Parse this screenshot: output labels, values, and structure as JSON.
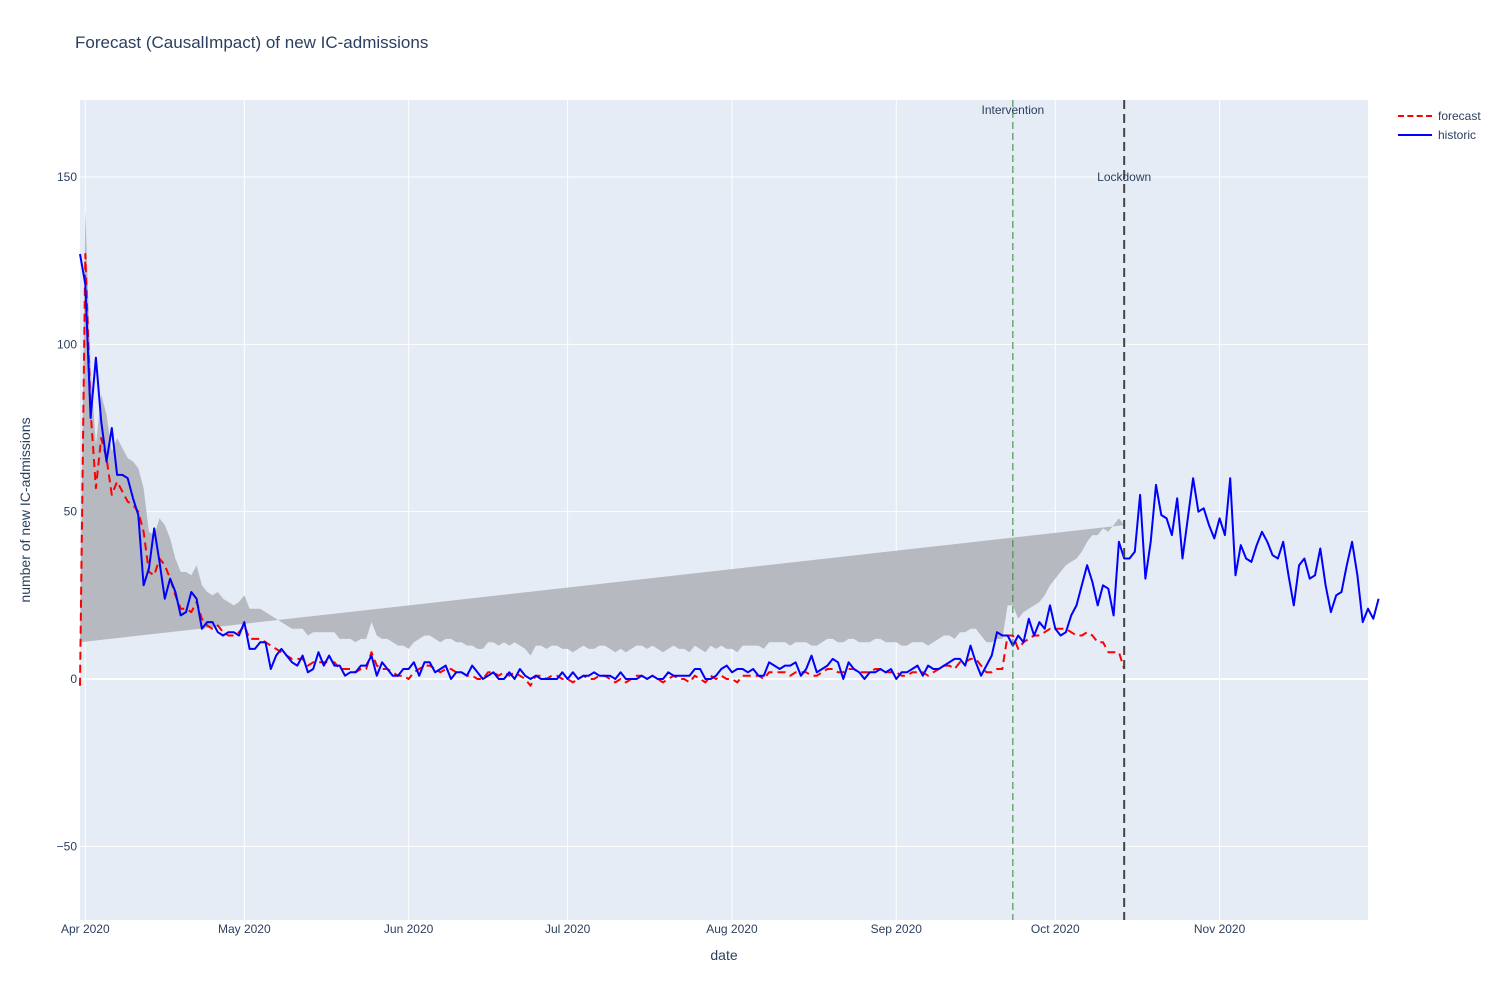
{
  "chart_data": {
    "type": "line",
    "title": "Forecast (CausalImpact) of new IC-admissions",
    "xlabel": "date",
    "ylabel": "number of new IC-admissions",
    "xlim": [
      "2020-03-31",
      "2020-11-29"
    ],
    "ylim": [
      -72,
      173
    ],
    "x_ticks": [
      {
        "date": "2020-04-01",
        "label": "Apr 2020"
      },
      {
        "date": "2020-05-01",
        "label": "May 2020"
      },
      {
        "date": "2020-06-01",
        "label": "Jun 2020"
      },
      {
        "date": "2020-07-01",
        "label": "Jul 2020"
      },
      {
        "date": "2020-08-01",
        "label": "Aug 2020"
      },
      {
        "date": "2020-09-01",
        "label": "Sep 2020"
      },
      {
        "date": "2020-10-01",
        "label": "Oct 2020"
      },
      {
        "date": "2020-11-01",
        "label": "Nov 2020"
      }
    ],
    "y_ticks": [
      -50,
      0,
      50,
      100,
      150
    ],
    "grid": true,
    "legend_position": "top-right, outside plot",
    "legend": [
      {
        "name": "forecast",
        "color": "#ff0000",
        "dash": "dash"
      },
      {
        "name": "historic",
        "color": "#0000ff",
        "dash": "solid"
      }
    ],
    "annotations": [
      {
        "label": "Intervention",
        "date": "2020-09-23",
        "color": "#2e8b2e"
      },
      {
        "label": "Lockdown",
        "date": "2020-10-14",
        "color": "#444444"
      }
    ],
    "series": [
      {
        "name": "historic",
        "color": "#0000ff",
        "x_start": "2020-03-31",
        "values": [
          127,
          118,
          78,
          96,
          77,
          65,
          75,
          61,
          61,
          60,
          54,
          49,
          28,
          33,
          45,
          35,
          24,
          30,
          26,
          19,
          20,
          26,
          24,
          15,
          17,
          17,
          14,
          13,
          14,
          14,
          13,
          17,
          9,
          9,
          11,
          11,
          3,
          7,
          9,
          7,
          5,
          4,
          7,
          2,
          3,
          8,
          4,
          7,
          4,
          4,
          1,
          2,
          2,
          4,
          4,
          7,
          1,
          5,
          3,
          1,
          1,
          3,
          3,
          5,
          1,
          5,
          5,
          2,
          3,
          4,
          0,
          2,
          2,
          1,
          4,
          2,
          0,
          1,
          2,
          0,
          0,
          2,
          0,
          3,
          1,
          0,
          1,
          0,
          0,
          0,
          0,
          2,
          0,
          2,
          0,
          1,
          1,
          2,
          1,
          1,
          1,
          0,
          2,
          0,
          0,
          0,
          1,
          0,
          1,
          0,
          0,
          2,
          1,
          1,
          1,
          1,
          3,
          3,
          0,
          0,
          1,
          3,
          4,
          2,
          3,
          3,
          2,
          3,
          1,
          1,
          5,
          4,
          3,
          4,
          4,
          5,
          1,
          3,
          7,
          2,
          3,
          4,
          6,
          5,
          0,
          5,
          3,
          2,
          0,
          2,
          2,
          3,
          2,
          3,
          0,
          2,
          2,
          3,
          4,
          1,
          4,
          3,
          3,
          4,
          5,
          6,
          6,
          4,
          10,
          5,
          1,
          4,
          7,
          14,
          13,
          13,
          10,
          13,
          11,
          18,
          13,
          17,
          15,
          22,
          15,
          13,
          14,
          19,
          22,
          28,
          34,
          29,
          22,
          28,
          27,
          19,
          41,
          36,
          36,
          38,
          55,
          30,
          41,
          58,
          49,
          48,
          43,
          54,
          36,
          48,
          60,
          50,
          51,
          46,
          42,
          48,
          43,
          60,
          31,
          40,
          36,
          35,
          40,
          44,
          41,
          37,
          36,
          41,
          31,
          22,
          34,
          36,
          30,
          31,
          39,
          28,
          20,
          25,
          26,
          34,
          41,
          31,
          17,
          21,
          18,
          24
        ]
      },
      {
        "name": "forecast",
        "color": "#ff0000",
        "x_start": "2020-03-31",
        "values": [
          -2,
          127,
          80,
          57,
          72,
          66,
          55,
          59,
          56,
          53,
          52,
          50,
          44,
          32,
          31,
          36,
          34,
          30,
          25,
          21,
          21,
          20,
          23,
          18,
          16,
          15,
          16,
          14,
          13,
          13,
          14,
          16,
          12,
          12,
          12,
          11,
          10,
          9,
          8,
          7,
          6,
          6,
          6,
          4,
          5,
          5,
          5,
          5,
          5,
          3,
          3,
          3,
          2,
          3,
          3,
          8,
          4,
          3,
          3,
          2,
          1,
          1,
          0,
          2,
          3,
          4,
          4,
          3,
          2,
          3,
          3,
          2,
          2,
          1,
          1,
          0,
          0,
          2,
          2,
          1,
          2,
          1,
          2,
          1,
          0,
          -2,
          1,
          1,
          0,
          1,
          1,
          0,
          0,
          -1,
          0,
          1,
          0,
          0,
          1,
          1,
          0,
          -1,
          0,
          -1,
          0,
          1,
          1,
          0,
          1,
          0,
          -1,
          0,
          1,
          0,
          0,
          -1,
          1,
          0,
          -1,
          1,
          0,
          1,
          0,
          0,
          -1,
          1,
          1,
          1,
          1,
          0,
          2,
          2,
          2,
          2,
          1,
          2,
          2,
          2,
          1,
          1,
          2,
          3,
          3,
          2,
          2,
          3,
          3,
          2,
          2,
          2,
          3,
          3,
          2,
          2,
          2,
          1,
          1,
          2,
          2,
          2,
          1,
          2,
          3,
          4,
          4,
          3,
          5,
          5,
          6,
          6,
          4,
          2,
          2,
          3,
          3,
          13,
          13,
          9,
          11,
          12,
          13,
          13,
          14,
          15,
          15,
          15,
          15,
          14,
          13,
          13,
          14,
          13,
          11,
          11,
          8,
          8,
          8,
          3
        ]
      }
    ],
    "confidence_band": {
      "color": "#b0b4ba",
      "x_start": "2020-03-31",
      "half_width": [
        13,
        13,
        13,
        13,
        13,
        13,
        13,
        13,
        13,
        13,
        13,
        13,
        13,
        12,
        12,
        12,
        12,
        12,
        11,
        11,
        11,
        11,
        11,
        10,
        10,
        10,
        10,
        10,
        10,
        9,
        9,
        9,
        9,
        9,
        9,
        9,
        9,
        9,
        9,
        9,
        9,
        9,
        9,
        9,
        9,
        9,
        9,
        9,
        9,
        9,
        9,
        9,
        9,
        9,
        9,
        9,
        9,
        9,
        9,
        9,
        9,
        9,
        9,
        9,
        9,
        9,
        9,
        9,
        9,
        9,
        9,
        9,
        9,
        9,
        9,
        9,
        9,
        9,
        9,
        9,
        9,
        9,
        9,
        9,
        9,
        9,
        9,
        9,
        9,
        9,
        9,
        9,
        9,
        9,
        9,
        9,
        9,
        9,
        9,
        9,
        9,
        9,
        9,
        9,
        9,
        9,
        9,
        9,
        9,
        9,
        9,
        9,
        9,
        9,
        9,
        9,
        9,
        9,
        9,
        9,
        9,
        9,
        9,
        9,
        9,
        9,
        9,
        9,
        9,
        9,
        9,
        9,
        9,
        9,
        9,
        9,
        9,
        9,
        9,
        9,
        9,
        9,
        9,
        9,
        9,
        9,
        9,
        9,
        9,
        9,
        9,
        9,
        9,
        9,
        9,
        9,
        9,
        9,
        9,
        9,
        9,
        9,
        9,
        9,
        9,
        9,
        9,
        9,
        9,
        9,
        9,
        9,
        9,
        9,
        9,
        9,
        9,
        9,
        9,
        9,
        9,
        10,
        11,
        13,
        15,
        17,
        19,
        21,
        23,
        25,
        27,
        30,
        32,
        34,
        36,
        38,
        40,
        43,
        45,
        48,
        50,
        52,
        55,
        60,
        65
      ]
    }
  }
}
